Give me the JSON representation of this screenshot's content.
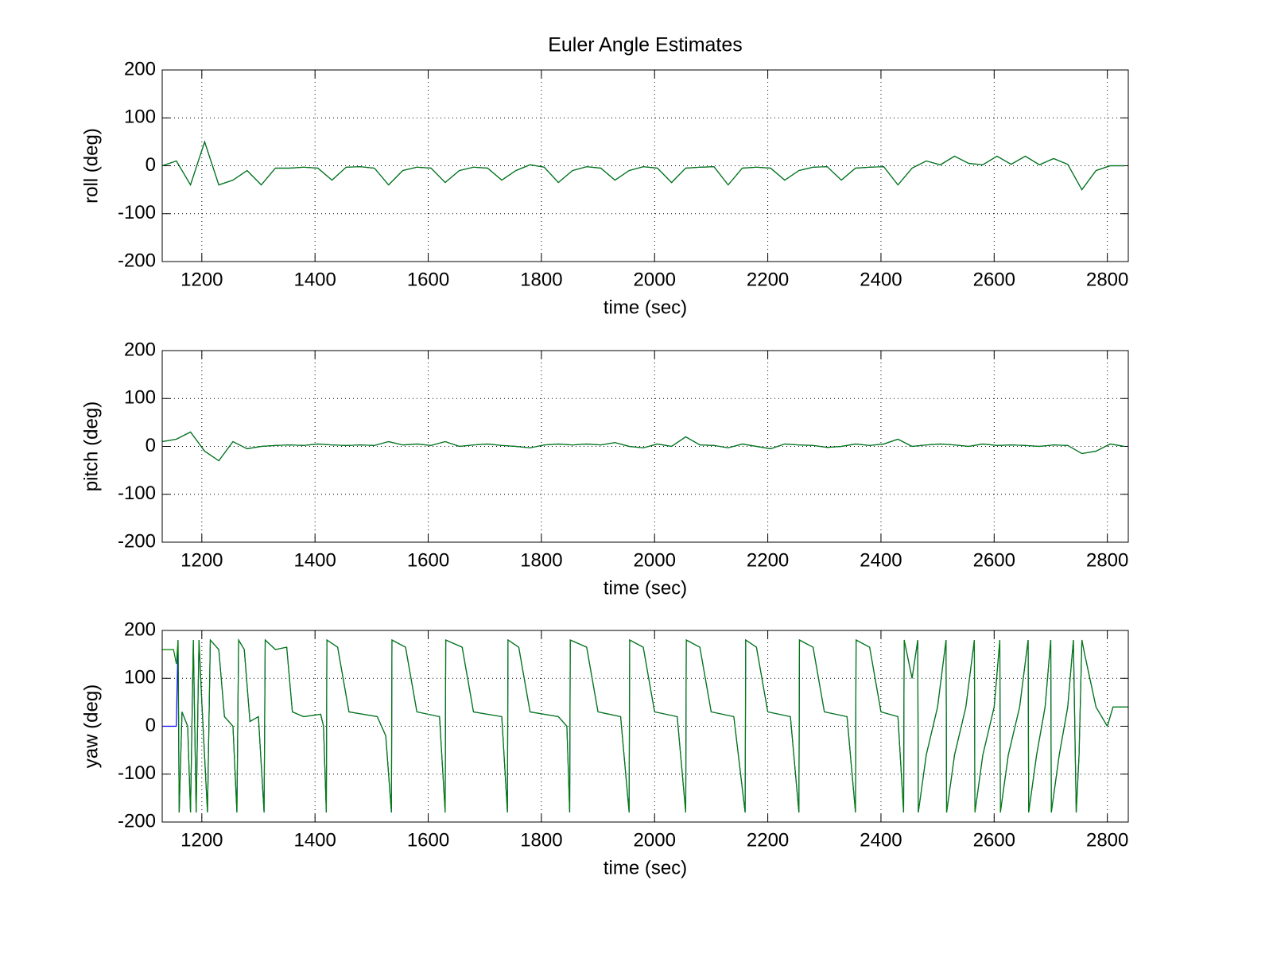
{
  "chart_data": [
    {
      "type": "line",
      "title": "Euler Angle Estimates",
      "xlabel": "time (sec)",
      "ylabel": "roll (deg)",
      "x": [
        1130,
        1155,
        1180,
        1205,
        1230,
        1255,
        1280,
        1305,
        1330,
        1355,
        1380,
        1405,
        1430,
        1455,
        1480,
        1505,
        1530,
        1555,
        1580,
        1605,
        1630,
        1655,
        1680,
        1705,
        1730,
        1755,
        1780,
        1805,
        1830,
        1855,
        1880,
        1905,
        1930,
        1955,
        1980,
        2005,
        2030,
        2055,
        2080,
        2105,
        2130,
        2155,
        2180,
        2205,
        2230,
        2255,
        2280,
        2305,
        2330,
        2355,
        2380,
        2405,
        2430,
        2455,
        2480,
        2505,
        2530,
        2555,
        2580,
        2605,
        2630,
        2655,
        2680,
        2705,
        2730,
        2755,
        2780,
        2805,
        2830
      ],
      "series": [
        {
          "color": "#0000ff",
          "values": [
            0,
            10,
            -40,
            50,
            -40,
            -30,
            -10,
            -40,
            -5,
            -5,
            -3,
            -5,
            -30,
            -3,
            -2,
            -5,
            -40,
            -10,
            -3,
            -5,
            -35,
            -10,
            -3,
            -5,
            -30,
            -10,
            2,
            -3,
            -35,
            -10,
            -2,
            -5,
            -30,
            -10,
            -2,
            -5,
            -35,
            -5,
            -3,
            -2,
            -40,
            -5,
            -3,
            -5,
            -30,
            -10,
            -3,
            -2,
            -30,
            -5,
            -3,
            -2,
            -40,
            -5,
            10,
            2,
            20,
            5,
            2,
            20,
            3,
            20,
            2,
            15,
            3,
            -50,
            -10,
            0,
            0
          ]
        },
        {
          "color": "#008000",
          "values": [
            0,
            10,
            -40,
            50,
            -40,
            -30,
            -10,
            -40,
            -5,
            -5,
            -3,
            -5,
            -30,
            -3,
            -2,
            -5,
            -40,
            -10,
            -3,
            -5,
            -35,
            -10,
            -3,
            -5,
            -30,
            -10,
            2,
            -3,
            -35,
            -10,
            -2,
            -5,
            -30,
            -10,
            -2,
            -5,
            -35,
            -5,
            -3,
            -2,
            -40,
            -5,
            -3,
            -5,
            -30,
            -10,
            -3,
            -2,
            -30,
            -5,
            -3,
            -2,
            -40,
            -5,
            10,
            2,
            20,
            5,
            2,
            20,
            3,
            20,
            2,
            15,
            3,
            -50,
            -10,
            0,
            0
          ]
        }
      ],
      "xlim": [
        1130,
        2837
      ],
      "ylim": [
        -200,
        200
      ],
      "xticks": [
        1200,
        1400,
        1600,
        1800,
        2000,
        2200,
        2400,
        2600,
        2800
      ],
      "yticks": [
        -200,
        -100,
        0,
        100,
        200
      ],
      "grid": true
    },
    {
      "type": "line",
      "xlabel": "time (sec)",
      "ylabel": "pitch (deg)",
      "x": [
        1130,
        1155,
        1180,
        1205,
        1230,
        1255,
        1280,
        1305,
        1330,
        1355,
        1380,
        1405,
        1430,
        1455,
        1480,
        1505,
        1530,
        1555,
        1580,
        1605,
        1630,
        1655,
        1680,
        1705,
        1730,
        1755,
        1780,
        1805,
        1830,
        1855,
        1880,
        1905,
        1930,
        1955,
        1980,
        2005,
        2030,
        2055,
        2080,
        2105,
        2130,
        2155,
        2180,
        2205,
        2230,
        2255,
        2280,
        2305,
        2330,
        2355,
        2380,
        2405,
        2430,
        2455,
        2480,
        2505,
        2530,
        2555,
        2580,
        2605,
        2630,
        2655,
        2680,
        2705,
        2730,
        2755,
        2780,
        2805,
        2830
      ],
      "series": [
        {
          "color": "#0000ff",
          "values": [
            10,
            15,
            30,
            -10,
            -30,
            10,
            -5,
            0,
            2,
            3,
            2,
            5,
            3,
            2,
            3,
            2,
            10,
            3,
            5,
            2,
            10,
            0,
            3,
            5,
            2,
            0,
            -3,
            3,
            5,
            3,
            5,
            3,
            8,
            0,
            -3,
            5,
            0,
            20,
            3,
            2,
            -3,
            5,
            0,
            -5,
            5,
            3,
            2,
            -2,
            0,
            5,
            2,
            5,
            15,
            0,
            3,
            5,
            3,
            0,
            5,
            2,
            3,
            2,
            0,
            3,
            2,
            -15,
            -10,
            5,
            0
          ]
        },
        {
          "color": "#008000",
          "values": [
            10,
            15,
            30,
            -10,
            -30,
            10,
            -5,
            0,
            2,
            3,
            2,
            5,
            3,
            2,
            3,
            2,
            10,
            3,
            5,
            2,
            10,
            0,
            3,
            5,
            2,
            0,
            -3,
            3,
            5,
            3,
            5,
            3,
            8,
            0,
            -3,
            5,
            0,
            20,
            3,
            2,
            -3,
            5,
            0,
            -5,
            5,
            3,
            2,
            -2,
            0,
            5,
            2,
            5,
            15,
            0,
            3,
            5,
            3,
            0,
            5,
            2,
            3,
            2,
            0,
            3,
            2,
            -15,
            -10,
            5,
            0
          ]
        }
      ],
      "xlim": [
        1130,
        2837
      ],
      "ylim": [
        -200,
        200
      ],
      "xticks": [
        1200,
        1400,
        1600,
        1800,
        2000,
        2200,
        2400,
        2600,
        2800
      ],
      "yticks": [
        -200,
        -100,
        0,
        100,
        200
      ],
      "grid": true
    },
    {
      "type": "line",
      "xlabel": "time (sec)",
      "ylabel": "yaw (deg)",
      "x": [
        1130,
        1150,
        1155,
        1158,
        1160,
        1165,
        1175,
        1180,
        1185,
        1190,
        1195,
        1200,
        1210,
        1215,
        1230,
        1240,
        1255,
        1262,
        1265,
        1275,
        1285,
        1300,
        1310,
        1312,
        1330,
        1350,
        1360,
        1380,
        1410,
        1415,
        1420,
        1421,
        1440,
        1460,
        1510,
        1525,
        1535,
        1536,
        1560,
        1580,
        1620,
        1630,
        1631,
        1660,
        1680,
        1730,
        1740,
        1741,
        1760,
        1780,
        1830,
        1845,
        1850,
        1851,
        1880,
        1900,
        1940,
        1955,
        1956,
        1980,
        2000,
        2040,
        2055,
        2056,
        2080,
        2100,
        2140,
        2160,
        2161,
        2180,
        2200,
        2240,
        2255,
        2256,
        2280,
        2300,
        2340,
        2355,
        2356,
        2380,
        2400,
        2430,
        2440,
        2441,
        2455,
        2465,
        2466,
        2480,
        2500,
        2515,
        2516,
        2530,
        2550,
        2565,
        2566,
        2580,
        2600,
        2610,
        2611,
        2625,
        2645,
        2660,
        2661,
        2675,
        2690,
        2700,
        2701,
        2715,
        2730,
        2740,
        2745,
        2750,
        2755,
        2760,
        2780,
        2800,
        2810,
        2837
      ],
      "series": [
        {
          "color": "#0000ff",
          "values": [
            0,
            0,
            0,
            180,
            -180,
            30,
            0,
            -180,
            180,
            -180,
            180,
            50,
            -180,
            180,
            160,
            20,
            0,
            -180,
            180,
            160,
            10,
            20,
            -180,
            180,
            160,
            165,
            30,
            20,
            25,
            0,
            -180,
            180,
            165,
            30,
            20,
            -20,
            -180,
            180,
            165,
            30,
            20,
            -180,
            180,
            165,
            30,
            20,
            -180,
            180,
            165,
            30,
            20,
            0,
            -180,
            180,
            165,
            30,
            20,
            -180,
            180,
            165,
            30,
            20,
            -180,
            180,
            165,
            30,
            20,
            -180,
            180,
            165,
            30,
            20,
            -180,
            180,
            165,
            30,
            20,
            -180,
            180,
            165,
            30,
            20,
            -180,
            180,
            100,
            180,
            -180,
            -60,
            40,
            180,
            -180,
            -60,
            40,
            180,
            -180,
            -60,
            40,
            180,
            -180,
            -60,
            40,
            180,
            -180,
            -60,
            40,
            180,
            -180,
            -60,
            40,
            180,
            -180,
            -60,
            180,
            150,
            40,
            0,
            40,
            40
          ]
        },
        {
          "color": "#008000",
          "values": [
            160,
            160,
            130,
            180,
            -180,
            30,
            0,
            -180,
            180,
            -180,
            180,
            50,
            -180,
            180,
            160,
            20,
            0,
            -180,
            180,
            160,
            10,
            20,
            -180,
            180,
            160,
            165,
            30,
            20,
            25,
            0,
            -180,
            180,
            165,
            30,
            20,
            -20,
            -180,
            180,
            165,
            30,
            20,
            -180,
            180,
            165,
            30,
            20,
            -180,
            180,
            165,
            30,
            20,
            0,
            -180,
            180,
            165,
            30,
            20,
            -180,
            180,
            165,
            30,
            20,
            -180,
            180,
            165,
            30,
            20,
            -180,
            180,
            165,
            30,
            20,
            -180,
            180,
            165,
            30,
            20,
            -180,
            180,
            165,
            30,
            20,
            -180,
            180,
            100,
            180,
            -180,
            -60,
            40,
            180,
            -180,
            -60,
            40,
            180,
            -180,
            -60,
            40,
            180,
            -180,
            -60,
            40,
            180,
            -180,
            -60,
            40,
            180,
            -180,
            -60,
            40,
            180,
            -180,
            -60,
            180,
            150,
            40,
            0,
            40,
            40
          ]
        }
      ],
      "xlim": [
        1130,
        2837
      ],
      "ylim": [
        -200,
        200
      ],
      "xticks": [
        1200,
        1400,
        1600,
        1800,
        2000,
        2200,
        2400,
        2600,
        2800
      ],
      "yticks": [
        -200,
        -100,
        0,
        100,
        200
      ],
      "grid": true
    }
  ]
}
